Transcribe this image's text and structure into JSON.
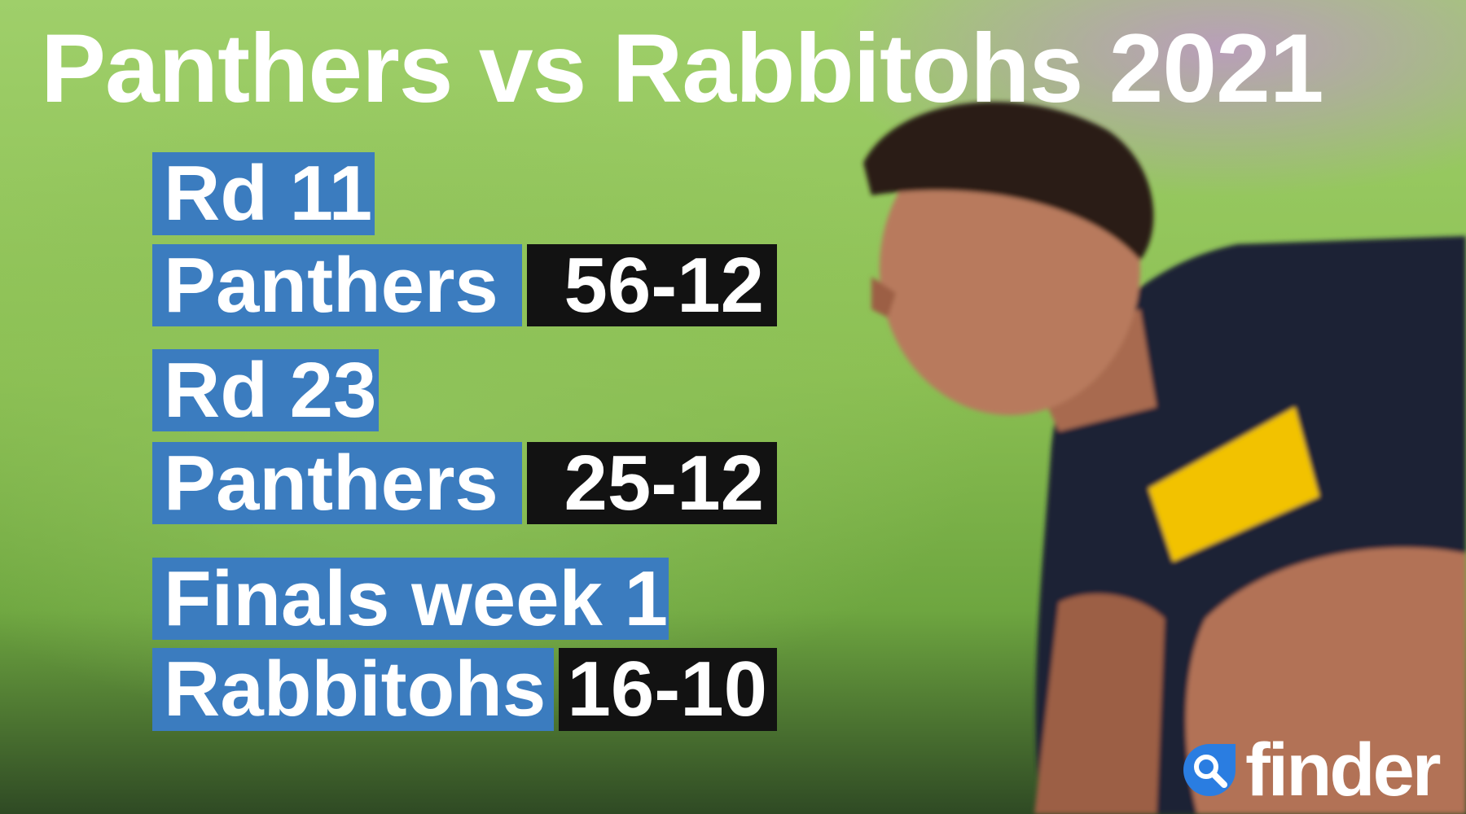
{
  "title": "Panthers vs Rabbitohs 2021",
  "games": [
    {
      "round": "Rd 11",
      "winner": "Panthers",
      "score": "56-12"
    },
    {
      "round": "Rd 23",
      "winner": "Panthers",
      "score": "25-12"
    },
    {
      "round": "Finals week 1",
      "winner": "Rabbitohs",
      "score": "16-10"
    }
  ],
  "logo": {
    "text": "finder",
    "icon": "magnifier-icon"
  },
  "colors": {
    "label_bg": "#3b7cbf",
    "score_bg": "#121212",
    "text": "#ffffff"
  }
}
